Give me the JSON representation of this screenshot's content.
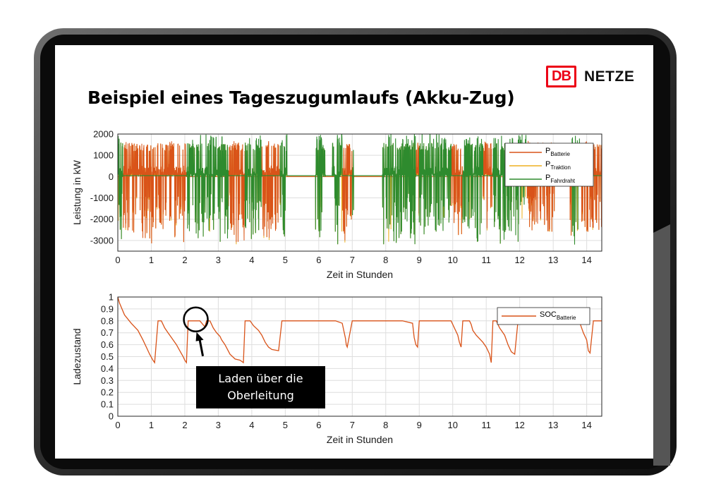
{
  "slide": {
    "title": "Beispiel eines Tageszugumlaufs (Akku-Zug)",
    "logo_db": "DB",
    "logo_netze": "NETZE",
    "logo_color": "#ec0016",
    "callout_line1": "Laden über die",
    "callout_line2": "Oberleitung"
  },
  "chart_data": [
    {
      "type": "line",
      "xlabel": "Zeit in Stunden",
      "ylabel": "Leistung in kW",
      "xlim": [
        0,
        14.45
      ],
      "ylim": [
        -3500,
        2000
      ],
      "xticks": [
        0,
        1,
        2,
        3,
        4,
        5,
        6,
        7,
        8,
        9,
        10,
        11,
        12,
        13,
        14
      ],
      "yticks": [
        2000,
        1000,
        0,
        -1000,
        -2000,
        -3000
      ],
      "grid": true,
      "legend_position": "top-right",
      "series": [
        {
          "name": "P",
          "subscript": "Batterie",
          "color": "#d95319"
        },
        {
          "name": "P",
          "subscript": "Traktion",
          "color": "#edb120"
        },
        {
          "name": "P",
          "subscript": "Fahrdraht",
          "color": "#2e8b2e"
        }
      ],
      "wire_segments_hours": [
        [
          0.0,
          0.15
        ],
        [
          2.05,
          2.65
        ],
        [
          2.65,
          3.3
        ],
        [
          3.8,
          4.3
        ],
        [
          4.85,
          4.95
        ],
        [
          4.95,
          6.0
        ],
        [
          6.0,
          6.7
        ],
        [
          7.0,
          8.0
        ],
        [
          8.0,
          8.9
        ],
        [
          9.0,
          9.95
        ],
        [
          10.3,
          10.9
        ],
        [
          11.2,
          11.55
        ],
        [
          11.55,
          12.2
        ],
        [
          13.55,
          13.8
        ]
      ]
    },
    {
      "type": "line",
      "xlabel": "Zeit in Stunden",
      "ylabel": "Ladezustand",
      "xlim": [
        0,
        14.45
      ],
      "ylim": [
        0,
        1
      ],
      "xticks": [
        0,
        1,
        2,
        3,
        4,
        5,
        6,
        7,
        8,
        9,
        10,
        11,
        12,
        13,
        14
      ],
      "yticks": [
        1,
        0.9,
        0.8,
        0.7,
        0.6,
        0.5,
        0.4,
        0.3,
        0.2,
        0.1,
        0
      ],
      "grid": true,
      "legend_position": "top-right",
      "series": [
        {
          "name": "SOC",
          "subscript": "Batterie",
          "color": "#d95319",
          "x": [
            0,
            0.05,
            0.2,
            0.4,
            0.6,
            0.75,
            0.85,
            0.95,
            1.05,
            1.1,
            1.2,
            1.3,
            1.4,
            1.5,
            1.6,
            1.75,
            1.85,
            1.95,
            2.0,
            2.05,
            2.1,
            2.15,
            2.25,
            2.35,
            2.45,
            2.6,
            2.65,
            2.75,
            2.85,
            2.95,
            3.05,
            3.1,
            3.2,
            3.35,
            3.5,
            3.65,
            3.75,
            3.8,
            3.95,
            4.05,
            4.2,
            4.3,
            4.4,
            4.5,
            4.6,
            4.8,
            4.9,
            4.95,
            5.5,
            6.0,
            6.5,
            6.7,
            6.8,
            6.82,
            6.85,
            7.0,
            7.5,
            8.0,
            8.5,
            8.8,
            8.85,
            8.9,
            8.95,
            9.0,
            9.5,
            9.95,
            10.05,
            10.15,
            10.2,
            10.25,
            10.3,
            10.4,
            10.5,
            10.55,
            10.6,
            10.7,
            10.9,
            11.0,
            11.1,
            11.15,
            11.2,
            11.3,
            11.4,
            11.45,
            11.55,
            11.65,
            11.75,
            11.85,
            11.95,
            12.05,
            12.1,
            12.2,
            12.4,
            12.8,
            13.0,
            13.4,
            13.6,
            13.8,
            13.9,
            14.0,
            14.05,
            14.1,
            14.2,
            14.45
          ],
          "y": [
            1.0,
            0.95,
            0.85,
            0.78,
            0.72,
            0.64,
            0.58,
            0.52,
            0.47,
            0.45,
            0.8,
            0.8,
            0.74,
            0.7,
            0.66,
            0.6,
            0.55,
            0.5,
            0.47,
            0.45,
            0.8,
            0.8,
            0.8,
            0.8,
            0.8,
            0.75,
            0.8,
            0.8,
            0.74,
            0.7,
            0.67,
            0.64,
            0.6,
            0.52,
            0.48,
            0.47,
            0.45,
            0.8,
            0.8,
            0.76,
            0.72,
            0.68,
            0.62,
            0.58,
            0.56,
            0.55,
            0.8,
            0.8,
            0.8,
            0.8,
            0.8,
            0.78,
            0.65,
            0.6,
            0.58,
            0.8,
            0.8,
            0.8,
            0.8,
            0.78,
            0.66,
            0.6,
            0.58,
            0.8,
            0.8,
            0.8,
            0.74,
            0.68,
            0.62,
            0.58,
            0.8,
            0.8,
            0.8,
            0.77,
            0.72,
            0.68,
            0.62,
            0.58,
            0.52,
            0.45,
            0.8,
            0.8,
            0.74,
            0.72,
            0.68,
            0.6,
            0.54,
            0.52,
            0.8,
            0.8,
            0.8,
            0.8,
            0.8,
            0.8,
            0.8,
            0.8,
            0.8,
            0.78,
            0.7,
            0.64,
            0.55,
            0.53,
            0.8,
            0.8
          ],
          "note_marker_hours": 2.35
        }
      ]
    }
  ]
}
